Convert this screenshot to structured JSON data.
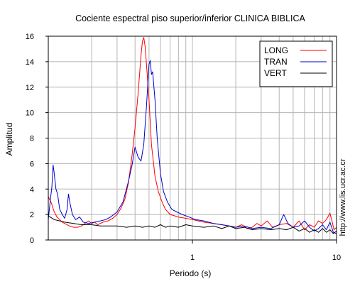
{
  "chart_data": {
    "type": "line",
    "title": "Cociente espectral piso superior/inferior  CLINICA BIBLICA",
    "xlabel": "Periodo (s)",
    "ylabel": "Amplitud",
    "xscale": "log",
    "xlim": [
      0.1,
      10
    ],
    "ylim": [
      0,
      16
    ],
    "x_tick_labels": [
      {
        "value": 1,
        "label": "1"
      },
      {
        "value": 10,
        "label": "10"
      }
    ],
    "y_ticks": [
      0,
      2,
      4,
      6,
      8,
      10,
      12,
      14,
      16
    ],
    "grid": true,
    "legend_position": "top-right",
    "watermark": "http://www.lis.ucr.ac.cr",
    "series": [
      {
        "name": "LONG",
        "color": "#ff0000",
        "points": [
          [
            0.1,
            3.4
          ],
          [
            0.105,
            2.9
          ],
          [
            0.11,
            2.2
          ],
          [
            0.115,
            1.8
          ],
          [
            0.12,
            1.6
          ],
          [
            0.125,
            1.4
          ],
          [
            0.13,
            1.3
          ],
          [
            0.14,
            1.1
          ],
          [
            0.15,
            1.0
          ],
          [
            0.16,
            1.0
          ],
          [
            0.17,
            1.1
          ],
          [
            0.18,
            1.3
          ],
          [
            0.19,
            1.5
          ],
          [
            0.2,
            1.3
          ],
          [
            0.21,
            1.4
          ],
          [
            0.22,
            1.2
          ],
          [
            0.24,
            1.4
          ],
          [
            0.26,
            1.5
          ],
          [
            0.28,
            1.7
          ],
          [
            0.3,
            2.0
          ],
          [
            0.32,
            2.5
          ],
          [
            0.34,
            3.2
          ],
          [
            0.36,
            4.5
          ],
          [
            0.38,
            6.5
          ],
          [
            0.4,
            8.8
          ],
          [
            0.42,
            11.5
          ],
          [
            0.44,
            14.5
          ],
          [
            0.45,
            15.6
          ],
          [
            0.46,
            15.9
          ],
          [
            0.47,
            15.2
          ],
          [
            0.48,
            13.8
          ],
          [
            0.5,
            11.0
          ],
          [
            0.52,
            7.5
          ],
          [
            0.55,
            5.0
          ],
          [
            0.58,
            3.8
          ],
          [
            0.62,
            2.9
          ],
          [
            0.65,
            2.4
          ],
          [
            0.7,
            2.0
          ],
          [
            0.75,
            1.9
          ],
          [
            0.8,
            1.8
          ],
          [
            0.9,
            1.7
          ],
          [
            1.0,
            1.6
          ],
          [
            1.2,
            1.4
          ],
          [
            1.4,
            1.3
          ],
          [
            1.6,
            1.2
          ],
          [
            1.8,
            1.1
          ],
          [
            2.0,
            1.0
          ],
          [
            2.2,
            1.2
          ],
          [
            2.4,
            0.9
          ],
          [
            2.6,
            1.0
          ],
          [
            2.8,
            1.3
          ],
          [
            3.0,
            1.1
          ],
          [
            3.3,
            1.5
          ],
          [
            3.6,
            1.0
          ],
          [
            4.0,
            1.2
          ],
          [
            4.5,
            1.3
          ],
          [
            5.0,
            1.0
          ],
          [
            5.5,
            1.5
          ],
          [
            6.0,
            0.8
          ],
          [
            6.5,
            1.2
          ],
          [
            7.0,
            1.0
          ],
          [
            7.5,
            1.5
          ],
          [
            8.0,
            1.3
          ],
          [
            8.5,
            1.6
          ],
          [
            9.0,
            2.1
          ],
          [
            9.3,
            1.5
          ],
          [
            9.6,
            0.8
          ],
          [
            10.0,
            1.0
          ]
        ]
      },
      {
        "name": "TRAN",
        "color": "#0000cc",
        "points": [
          [
            0.1,
            1.6
          ],
          [
            0.103,
            3.0
          ],
          [
            0.106,
            4.2
          ],
          [
            0.108,
            5.9
          ],
          [
            0.11,
            5.2
          ],
          [
            0.113,
            4.0
          ],
          [
            0.116,
            3.6
          ],
          [
            0.12,
            2.4
          ],
          [
            0.125,
            2.0
          ],
          [
            0.13,
            1.7
          ],
          [
            0.135,
            2.4
          ],
          [
            0.138,
            3.6
          ],
          [
            0.142,
            2.8
          ],
          [
            0.147,
            2.0
          ],
          [
            0.155,
            1.6
          ],
          [
            0.165,
            1.8
          ],
          [
            0.175,
            1.4
          ],
          [
            0.19,
            1.3
          ],
          [
            0.21,
            1.4
          ],
          [
            0.23,
            1.5
          ],
          [
            0.25,
            1.6
          ],
          [
            0.27,
            1.8
          ],
          [
            0.3,
            2.2
          ],
          [
            0.33,
            3.0
          ],
          [
            0.36,
            4.6
          ],
          [
            0.38,
            5.8
          ],
          [
            0.4,
            7.3
          ],
          [
            0.42,
            6.5
          ],
          [
            0.44,
            6.2
          ],
          [
            0.46,
            7.5
          ],
          [
            0.48,
            10.5
          ],
          [
            0.5,
            13.8
          ],
          [
            0.51,
            14.1
          ],
          [
            0.52,
            13.0
          ],
          [
            0.53,
            13.2
          ],
          [
            0.55,
            11.0
          ],
          [
            0.57,
            8.0
          ],
          [
            0.6,
            5.2
          ],
          [
            0.63,
            3.8
          ],
          [
            0.67,
            3.0
          ],
          [
            0.72,
            2.4
          ],
          [
            0.78,
            2.2
          ],
          [
            0.85,
            2.0
          ],
          [
            0.95,
            1.8
          ],
          [
            1.05,
            1.6
          ],
          [
            1.2,
            1.5
          ],
          [
            1.4,
            1.3
          ],
          [
            1.6,
            1.2
          ],
          [
            1.8,
            1.1
          ],
          [
            2.0,
            1.0
          ],
          [
            2.3,
            1.1
          ],
          [
            2.6,
            0.9
          ],
          [
            3.0,
            1.0
          ],
          [
            3.5,
            0.9
          ],
          [
            4.0,
            1.2
          ],
          [
            4.3,
            2.0
          ],
          [
            4.6,
            1.3
          ],
          [
            5.0,
            1.0
          ],
          [
            5.5,
            1.1
          ],
          [
            6.0,
            1.5
          ],
          [
            6.5,
            1.0
          ],
          [
            7.0,
            0.7
          ],
          [
            7.5,
            0.9
          ],
          [
            8.0,
            1.2
          ],
          [
            8.5,
            0.8
          ],
          [
            9.0,
            1.4
          ],
          [
            9.5,
            0.6
          ],
          [
            10.0,
            0.5
          ]
        ]
      },
      {
        "name": "VERT",
        "color": "#000000",
        "points": [
          [
            0.1,
            1.9
          ],
          [
            0.11,
            1.6
          ],
          [
            0.12,
            1.5
          ],
          [
            0.13,
            1.4
          ],
          [
            0.15,
            1.3
          ],
          [
            0.17,
            1.2
          ],
          [
            0.2,
            1.2
          ],
          [
            0.23,
            1.1
          ],
          [
            0.26,
            1.1
          ],
          [
            0.3,
            1.1
          ],
          [
            0.35,
            1.0
          ],
          [
            0.4,
            1.1
          ],
          [
            0.45,
            1.0
          ],
          [
            0.5,
            1.1
          ],
          [
            0.55,
            1.0
          ],
          [
            0.6,
            1.2
          ],
          [
            0.65,
            1.0
          ],
          [
            0.7,
            1.1
          ],
          [
            0.8,
            1.0
          ],
          [
            0.9,
            1.2
          ],
          [
            1.0,
            1.1
          ],
          [
            1.2,
            1.0
          ],
          [
            1.4,
            1.1
          ],
          [
            1.6,
            0.9
          ],
          [
            1.8,
            1.1
          ],
          [
            2.0,
            0.9
          ],
          [
            2.3,
            1.0
          ],
          [
            2.6,
            0.8
          ],
          [
            3.0,
            0.9
          ],
          [
            3.5,
            0.8
          ],
          [
            4.0,
            0.9
          ],
          [
            4.5,
            0.8
          ],
          [
            5.0,
            1.0
          ],
          [
            5.5,
            0.7
          ],
          [
            6.0,
            0.9
          ],
          [
            6.5,
            0.6
          ],
          [
            7.0,
            0.8
          ],
          [
            7.5,
            0.6
          ],
          [
            8.0,
            0.9
          ],
          [
            8.5,
            0.6
          ],
          [
            9.0,
            0.8
          ],
          [
            9.5,
            0.5
          ],
          [
            10.0,
            0.7
          ]
        ]
      }
    ]
  }
}
